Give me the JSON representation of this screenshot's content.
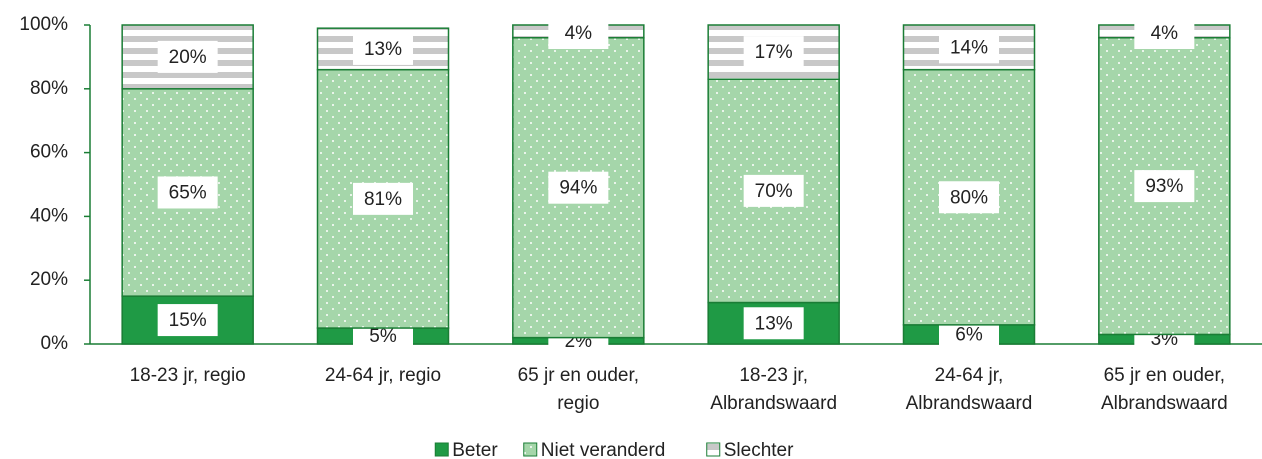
{
  "chart_data": {
    "type": "stacked_bar",
    "categories": [
      "18-23 jr, regio",
      "24-64 jr, regio",
      "65 jr en ouder,\nregio",
      "18-23 jr,\nAlbrandswaard",
      "24-64 jr,\nAlbrandswaard",
      "65 jr en ouder,\nAlbrandswaard"
    ],
    "series": [
      {
        "name": "Beter",
        "color": "#1f9a45",
        "values": [
          15,
          5,
          2,
          13,
          6,
          3
        ],
        "value_labels": [
          "15%",
          "5%",
          "2%",
          "13%",
          "6%",
          "3%"
        ]
      },
      {
        "name": "Niet veranderd",
        "color": "#a5d6aa",
        "values": [
          65,
          81,
          94,
          70,
          80,
          93
        ],
        "value_labels": [
          "65%",
          "81%",
          "94%",
          "70%",
          "80%",
          "93%"
        ]
      },
      {
        "name": "Slechter",
        "color": "#c8c8c8",
        "values": [
          20,
          13,
          4,
          17,
          14,
          4
        ],
        "value_labels": [
          "20%",
          "13%",
          "4%",
          "17%",
          "14%",
          "4%"
        ]
      }
    ],
    "ylim": [
      0,
      100
    ],
    "yticks": [
      {
        "value": 0,
        "label": "0%"
      },
      {
        "value": 20,
        "label": "20%"
      },
      {
        "value": 40,
        "label": "40%"
      },
      {
        "value": 60,
        "label": "60%"
      },
      {
        "value": 80,
        "label": "80%"
      },
      {
        "value": 100,
        "label": "100%"
      }
    ]
  }
}
